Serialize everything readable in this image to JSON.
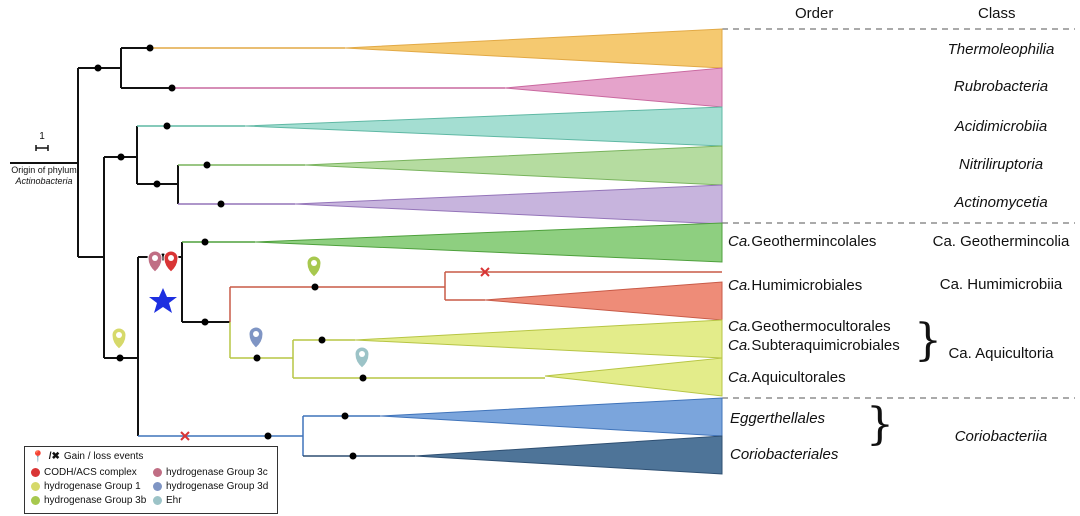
{
  "headers": {
    "order": "Order",
    "class": "Class"
  },
  "scale_bar": {
    "value": "1",
    "origin_line1": "Origin of phylum",
    "origin_line2": "Actinobacteria"
  },
  "classes": {
    "thermoleophilia": "Thermoleophilia",
    "rubrobacteria": "Rubrobacteria",
    "acidimicrobiia": "Acidimicrobiia",
    "nitriliruptoria": "Nitriliruptoria",
    "actinomycetia": "Actinomycetia",
    "geothermincolia": "Ca. Geothermincolia",
    "humimicrobiia": "Ca. Humimicrobiia",
    "aquicultoria": "Ca. Aquicultoria",
    "coriobacteriia": "Coriobacteriia"
  },
  "orders": {
    "geothermincolales_prefix": "Ca.",
    "geothermincolales": "Geothermincolales",
    "humimicrobiales_prefix": "Ca.",
    "humimicrobiales": "Humimicrobiales",
    "geothermocultorales_prefix": "Ca.",
    "geothermocultorales": "Geothermocultorales",
    "subteraquimicrobiales_prefix": "Ca.",
    "subteraquimicrobiales": "Subteraquimicrobiales",
    "aquicultorales_prefix": "Ca.",
    "aquicultorales": "Aquicultorales",
    "eggerthellales": "Eggerthellales",
    "coriobacteriales": "Coriobacteriales"
  },
  "legend": {
    "title": "Gain / loss events",
    "items": [
      {
        "label": "CODH/ACS complex",
        "color": "#d93535"
      },
      {
        "label": "hydrogenase Group 1",
        "color": "#d6d96a"
      },
      {
        "label": "hydrogenase Group 3b",
        "color": "#a7c84e"
      },
      {
        "label": "hydrogenase Group 3c",
        "color": "#c06e84"
      },
      {
        "label": "hydrogenase Group 3d",
        "color": "#7f95c4"
      },
      {
        "label": "Ehr",
        "color": "#9cc3c7"
      }
    ]
  },
  "colors": {
    "thermoleophilia": "#f5c970",
    "rubrobacteria": "#e5a3cb",
    "acidimicrobiia": "#a4ded2",
    "nitriliruptoria": "#b5dca0",
    "actinomycetia": "#c7b4dd",
    "geothermincolia": "#8ecf80",
    "humimicrobiia": "#ee8c78",
    "aquicultoria": "#e3ec8a",
    "eggerthellales": "#7ba5dc",
    "coriobacteriales": "#4e7498",
    "star": "#1d2fe0"
  }
}
